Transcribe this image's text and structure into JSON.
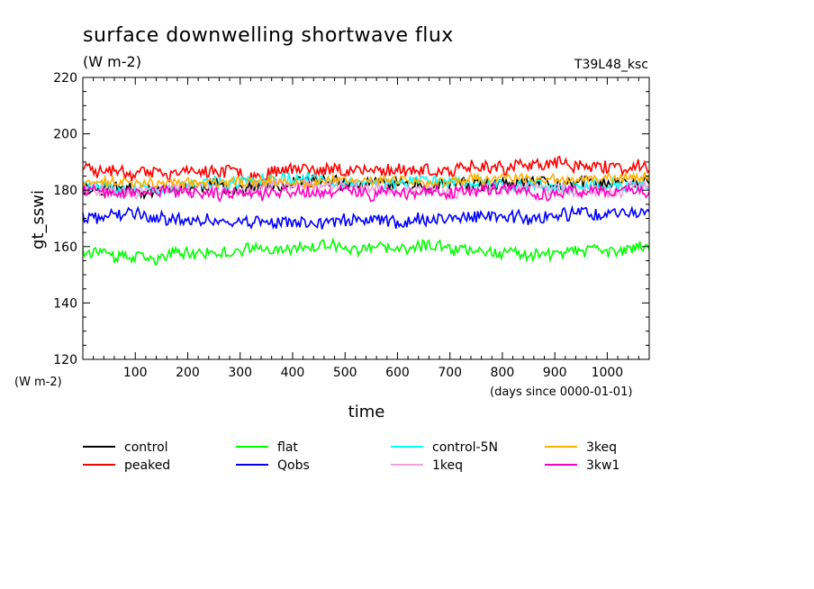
{
  "chart_data": {
    "type": "line",
    "title": "surface downwelling shortwave flux",
    "subtitle": "(W m-2)",
    "experiment": "T39L48_ksc",
    "ylabel": "gt_sswi",
    "yunit": "(W m-2)",
    "xlabel": "time",
    "xunit": "(days since 0000-01-01)",
    "xlim": [
      0,
      1080
    ],
    "ylim": [
      120,
      220
    ],
    "xticks": [
      100,
      200,
      300,
      400,
      500,
      600,
      700,
      800,
      900,
      1000
    ],
    "yticks": [
      120,
      140,
      160,
      180,
      200,
      220
    ],
    "grid": false,
    "legend_position": "bottom",
    "series": [
      {
        "name": "control",
        "color": "#000000",
        "mean": 181,
        "noise": 2.2,
        "seed": 11
      },
      {
        "name": "peaked",
        "color": "#ff0000",
        "mean": 188,
        "noise": 2.2,
        "seed": 23
      },
      {
        "name": "flat",
        "color": "#00ff00",
        "mean": 159,
        "noise": 2.0,
        "seed": 37
      },
      {
        "name": "Qobs",
        "color": "#0000ff",
        "mean": 170,
        "noise": 2.2,
        "seed": 41
      },
      {
        "name": "control-5N",
        "color": "#00ffff",
        "mean": 182.5,
        "noise": 2.0,
        "seed": 53
      },
      {
        "name": "1keq",
        "color": "#f0a0e0",
        "mean": 181,
        "noise": 2.0,
        "seed": 67
      },
      {
        "name": "3keq",
        "color": "#ffb000",
        "mean": 182.5,
        "noise": 1.6,
        "seed": 71
      },
      {
        "name": "3kw1",
        "color": "#ff00c0",
        "mean": 179.5,
        "noise": 2.2,
        "seed": 89
      }
    ]
  }
}
